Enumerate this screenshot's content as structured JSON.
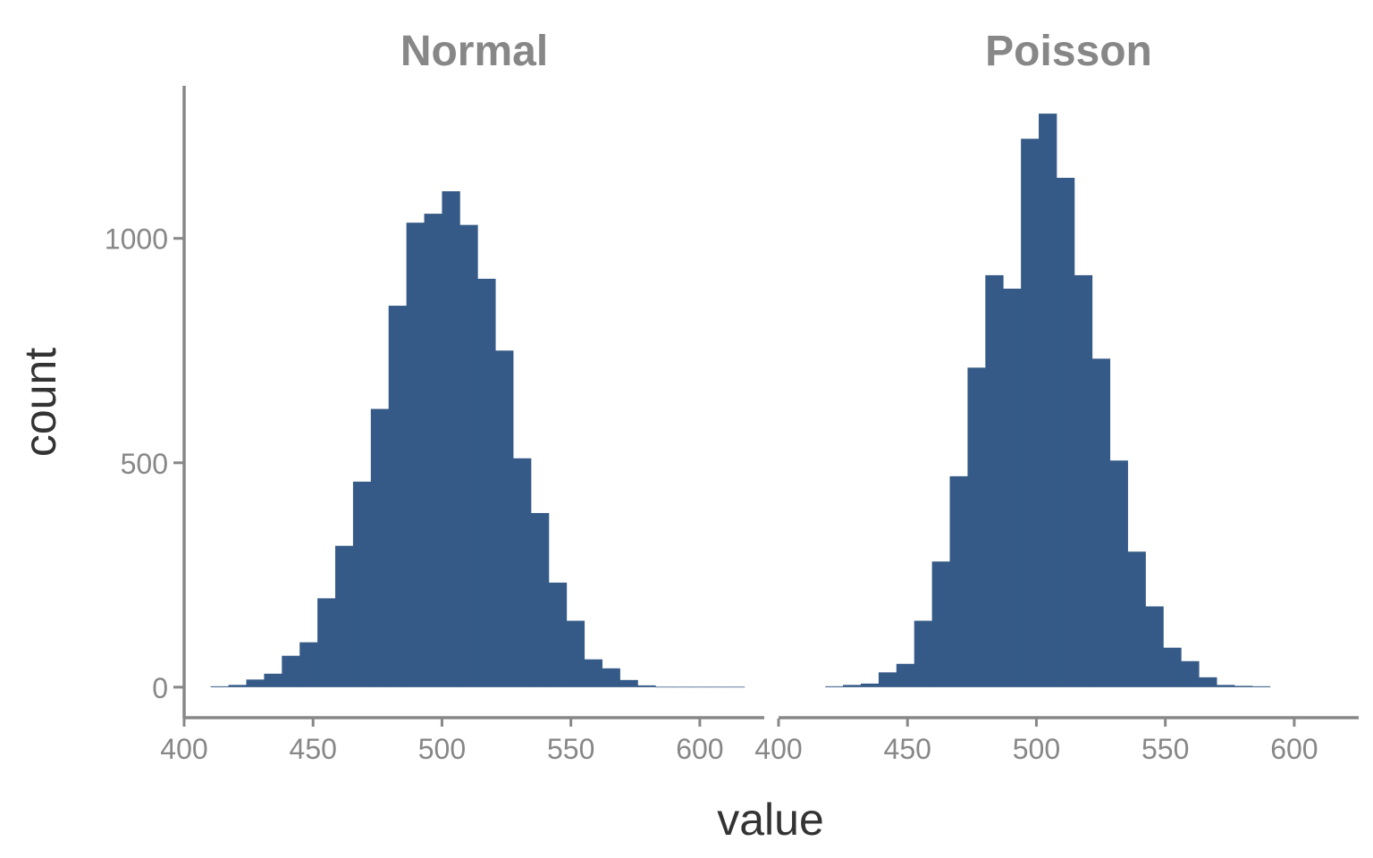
{
  "chart_data": {
    "type": "bar",
    "subtype": "histogram",
    "xlabel": "value",
    "ylabel": "count",
    "xlim": [
      400,
      625
    ],
    "ylim": [
      -62,
      1340
    ],
    "x_ticks": [
      400,
      450,
      500,
      550,
      600
    ],
    "x_tick_labels": [
      "400",
      "450",
      "500",
      "550",
      "600"
    ],
    "y_ticks": [
      0,
      500,
      1000
    ],
    "y_tick_labels": [
      "0",
      "500",
      "1000"
    ],
    "bin_width": 6.9,
    "grid": false,
    "legend": "none",
    "bar_color": "#355a87",
    "panels": [
      {
        "title": "Normal",
        "bin_starts": [
          410.3,
          417.2,
          424.1,
          431.0,
          437.9,
          444.8,
          451.7,
          458.6,
          465.5,
          472.4,
          479.3,
          486.2,
          493.1,
          500.0,
          506.9,
          513.8,
          520.7,
          527.6,
          534.5,
          541.4,
          548.3,
          555.2,
          562.1,
          569.0,
          575.9,
          582.8,
          589.7,
          596.6,
          603.5,
          610.4
        ],
        "counts": [
          2,
          5,
          17,
          30,
          70,
          100,
          198,
          315,
          458,
          620,
          850,
          1035,
          1055,
          1105,
          1030,
          910,
          750,
          510,
          388,
          233,
          148,
          62,
          42,
          16,
          4,
          1,
          1,
          1,
          1,
          1
        ]
      },
      {
        "title": "Poisson",
        "bin_starts": [
          418.1,
          425.0,
          431.9,
          438.8,
          445.7,
          452.6,
          459.5,
          466.4,
          473.3,
          480.2,
          487.1,
          494.0,
          500.9,
          507.8,
          514.7,
          521.6,
          528.5,
          535.4,
          542.3,
          549.2,
          556.1,
          563.0,
          569.9,
          576.8,
          583.7
        ],
        "counts": [
          2,
          5,
          8,
          33,
          52,
          148,
          280,
          470,
          712,
          918,
          888,
          1222,
          1278,
          1135,
          918,
          732,
          505,
          302,
          180,
          88,
          58,
          22,
          5,
          3,
          2
        ]
      }
    ]
  }
}
